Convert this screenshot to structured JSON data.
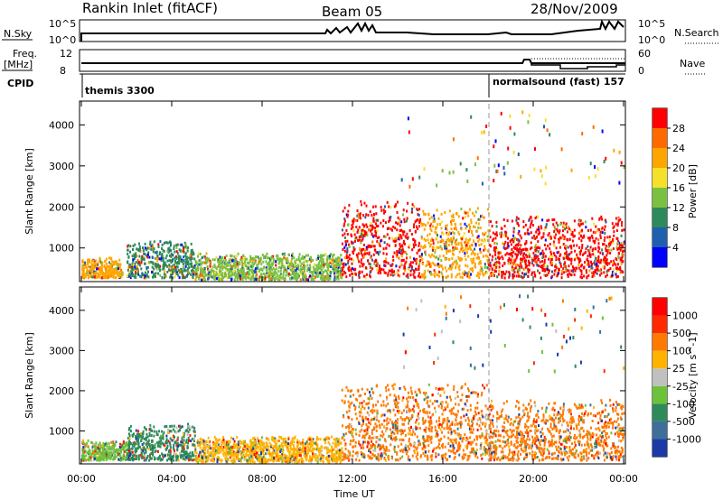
{
  "header": {
    "station": "Rankin Inlet (fitACF)",
    "beam": "Beam 05",
    "date": "28/Nov/2009"
  },
  "noise_panel": {
    "left_label": "N.Sky",
    "left_ticks": [
      "10^5",
      "10^0"
    ],
    "right_ticks": [
      "10^5",
      "10^0"
    ],
    "right_label": "N.Search"
  },
  "freq_panel": {
    "left_label_top": "Freq.",
    "left_label_unit": "[MHz]",
    "left_ticks": [
      "12",
      "8"
    ],
    "right_ticks": [
      "60",
      "0"
    ],
    "right_label": "Nave"
  },
  "cpid_panel": {
    "label": "CPID",
    "modes": [
      {
        "name": "themis 3300",
        "start_hour": 0.0
      },
      {
        "name": "normalsound (fast) 157",
        "start_hour": 18.0
      }
    ]
  },
  "chart_data": [
    {
      "type": "heatmap",
      "panel": "power",
      "ylabel": "Slant Range [km]",
      "yticks": [
        "1000",
        "2000",
        "3000",
        "4000"
      ],
      "ylim": [
        180,
        4580
      ],
      "xlim_hours": [
        0,
        24
      ],
      "colorbar_label": "Power [dB]",
      "colorbar_ticks": [
        "4",
        "8",
        "12",
        "16",
        "20",
        "24",
        "28"
      ],
      "colorbar_colors": [
        "#0000ff",
        "#1f5fb0",
        "#2e8a5a",
        "#7ac142",
        "#f5e12a",
        "#ffa500",
        "#ff6a00",
        "#ff0000"
      ],
      "echo_regions": [
        {
          "t_start": 0.0,
          "t_end": 1.8,
          "r_low": 300,
          "r_high": 800,
          "dominant": "#ffa500"
        },
        {
          "t_start": 2.0,
          "t_end": 5.0,
          "r_low": 300,
          "r_high": 1200,
          "dominant": "#2e8a5a"
        },
        {
          "t_start": 5.0,
          "t_end": 11.5,
          "r_low": 250,
          "r_high": 900,
          "dominant": "#7ac142"
        },
        {
          "t_start": 11.5,
          "t_end": 15.0,
          "r_low": 300,
          "r_high": 2200,
          "dominant": "#ff0000"
        },
        {
          "t_start": 15.0,
          "t_end": 18.0,
          "r_low": 300,
          "r_high": 2000,
          "dominant": "#ffa500"
        },
        {
          "t_start": 18.0,
          "t_end": 24.0,
          "r_low": 300,
          "r_high": 1800,
          "dominant": "#ff0000"
        }
      ]
    },
    {
      "type": "heatmap",
      "panel": "velocity",
      "ylabel": "Slant Range [km]",
      "yticks": [
        "1000",
        "2000",
        "3000",
        "4000"
      ],
      "ylim": [
        180,
        4580
      ],
      "xlim_hours": [
        0,
        24
      ],
      "xticks": [
        "00:00",
        "04:00",
        "08:00",
        "12:00",
        "16:00",
        "20:00",
        "00:00"
      ],
      "xlabel": "Time UT",
      "colorbar_label": "Velocity [m s^-1]",
      "colorbar_ticks": [
        "1000",
        "500",
        "100",
        "25",
        "-25",
        "-100",
        "-500",
        "-1000"
      ],
      "colorbar_colors": [
        "#1b3aa8",
        "#3d6f9a",
        "#2e8a5a",
        "#6cc23a",
        "#c0c0c0",
        "#ffb300",
        "#ff7a00",
        "#ff2a00",
        "#ff0000"
      ],
      "echo_regions": [
        {
          "t_start": 0.0,
          "t_end": 2.0,
          "r_low": 300,
          "r_high": 800,
          "dominant": "#6cc23a"
        },
        {
          "t_start": 2.0,
          "t_end": 5.0,
          "r_low": 300,
          "r_high": 1200,
          "dominant": "#2e8a5a"
        },
        {
          "t_start": 5.0,
          "t_end": 11.5,
          "r_low": 250,
          "r_high": 900,
          "dominant": "#ffb300"
        },
        {
          "t_start": 11.5,
          "t_end": 18.0,
          "r_low": 300,
          "r_high": 2200,
          "dominant": "#ff7a00"
        },
        {
          "t_start": 18.0,
          "t_end": 24.0,
          "r_low": 300,
          "r_high": 1800,
          "dominant": "#ff7a00"
        }
      ]
    }
  ],
  "colors": {
    "axis": "#000000",
    "background": "#ffffff"
  }
}
